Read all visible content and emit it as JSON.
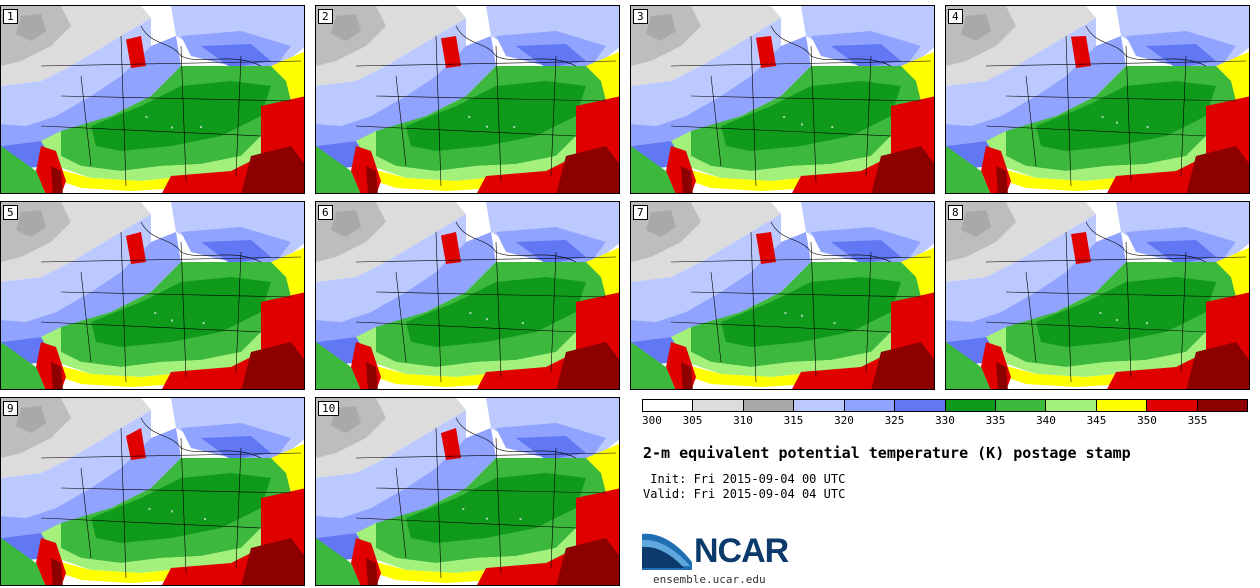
{
  "title": "2-m equivalent potential temperature (K) postage stamp",
  "init_line": " Init: Fri 2015-09-04 00 UTC",
  "valid_line": "Valid: Fri 2015-09-04 04 UTC",
  "logo": {
    "name": "NCAR",
    "url": "ensemble.ucar.edu"
  },
  "members": [
    "1",
    "2",
    "3",
    "4",
    "5",
    "6",
    "7",
    "8",
    "9",
    "10"
  ],
  "colorbar": {
    "ticks": [
      "300",
      "305",
      "310",
      "315",
      "320",
      "325",
      "330",
      "335",
      "340",
      "345",
      "350",
      "355"
    ],
    "colors": [
      "#ffffff",
      "#dcdcdc",
      "#a9a9a9",
      "#bcc9ff",
      "#8fa3ff",
      "#6177f3",
      "#109a1c",
      "#3cb83c",
      "#a3f07a",
      "#ffff00",
      "#e00000",
      "#8c0000"
    ]
  }
}
